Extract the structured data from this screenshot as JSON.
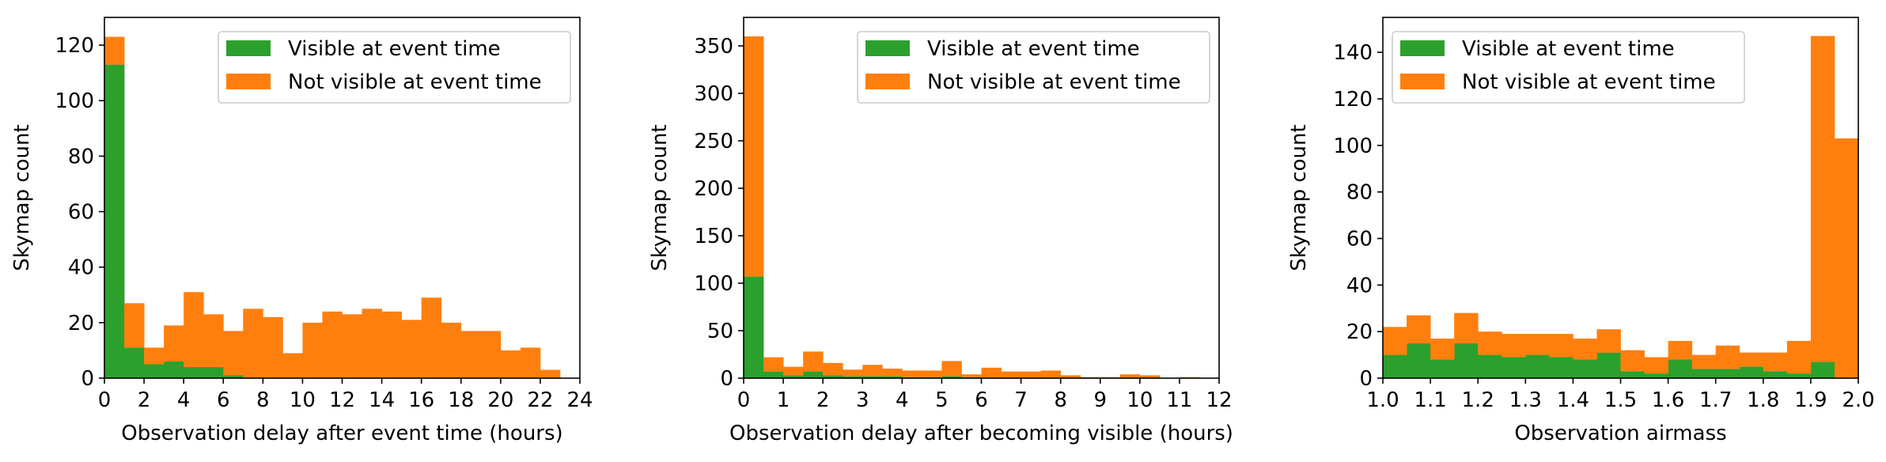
{
  "colors": {
    "visible": "#2ca02c",
    "not_visible": "#ff7f0e"
  },
  "chart_data": [
    {
      "type": "bar",
      "stacked": true,
      "bin_edges": [
        0,
        1,
        2,
        3,
        4,
        5,
        6,
        7,
        8,
        9,
        10,
        11,
        12,
        13,
        14,
        15,
        16,
        17,
        18,
        19,
        20,
        21,
        22,
        23,
        24
      ],
      "xlim": [
        0,
        24
      ],
      "ylim": [
        0,
        130
      ],
      "xticks": [
        0,
        2,
        4,
        6,
        8,
        10,
        12,
        14,
        16,
        18,
        20,
        22,
        24
      ],
      "yticks": [
        0,
        20,
        40,
        60,
        80,
        100,
        120
      ],
      "xlabel": "Observation delay after event time (hours)",
      "ylabel": "Skymap count",
      "legend_position": "top-right",
      "series": [
        {
          "name": "Visible at event time",
          "color": "#2ca02c",
          "values": [
            113,
            11,
            5,
            6,
            4,
            4,
            1,
            0,
            0,
            0,
            0,
            0,
            0,
            0,
            0,
            0,
            0,
            0,
            0,
            0,
            0,
            0,
            0,
            0
          ]
        },
        {
          "name": "Not visible at event time",
          "color": "#ff7f0e",
          "values": [
            10,
            16,
            6,
            13,
            27,
            19,
            16,
            25,
            22,
            9,
            20,
            24,
            23,
            25,
            24,
            21,
            29,
            20,
            17,
            17,
            10,
            11,
            3,
            0
          ]
        }
      ]
    },
    {
      "type": "bar",
      "stacked": true,
      "bin_edges": [
        0,
        0.5,
        1,
        1.5,
        2,
        2.5,
        3,
        3.5,
        4,
        4.5,
        5,
        5.5,
        6,
        6.5,
        7,
        7.5,
        8,
        8.5,
        9,
        9.5,
        10,
        10.5,
        11,
        11.5,
        12
      ],
      "xlim": [
        0,
        12
      ],
      "ylim": [
        0,
        380
      ],
      "xticks": [
        0,
        1,
        2,
        3,
        4,
        5,
        6,
        7,
        8,
        9,
        10,
        11,
        12
      ],
      "yticks": [
        0,
        50,
        100,
        150,
        200,
        250,
        300,
        350
      ],
      "xlabel": "Observation delay after becoming visible (hours)",
      "ylabel": "Skymap count",
      "legend_position": "top-right",
      "series": [
        {
          "name": "Visible at event time",
          "color": "#2ca02c",
          "values": [
            107,
            7,
            3,
            7,
            3,
            2,
            2,
            2,
            1,
            1,
            2,
            1,
            0,
            0,
            0,
            0,
            0,
            0,
            0,
            0,
            0,
            0,
            0,
            0
          ]
        },
        {
          "name": "Not visible at event time",
          "color": "#ff7f0e",
          "values": [
            253,
            15,
            9,
            21,
            13,
            7,
            12,
            8,
            7,
            7,
            16,
            3,
            11,
            7,
            7,
            8,
            3,
            1,
            1,
            4,
            3,
            0,
            1,
            0
          ]
        }
      ]
    },
    {
      "type": "bar",
      "stacked": true,
      "bin_edges": [
        1.0,
        1.05,
        1.1,
        1.15,
        1.2,
        1.25,
        1.3,
        1.35,
        1.4,
        1.45,
        1.5,
        1.55,
        1.6,
        1.65,
        1.7,
        1.75,
        1.8,
        1.85,
        1.9,
        1.95,
        2.0
      ],
      "xlim": [
        1.0,
        2.0
      ],
      "ylim": [
        0,
        155
      ],
      "xticks": [
        1.0,
        1.1,
        1.2,
        1.3,
        1.4,
        1.5,
        1.6,
        1.7,
        1.8,
        1.9,
        2.0
      ],
      "xtick_labels": [
        "1.0",
        "1.1",
        "1.2",
        "1.3",
        "1.4",
        "1.5",
        "1.6",
        "1.7",
        "1.8",
        "1.9",
        "2.0"
      ],
      "yticks": [
        0,
        20,
        40,
        60,
        80,
        100,
        120,
        140
      ],
      "xlabel": "Observation airmass",
      "ylabel": "Skymap count",
      "legend_position": "top-left",
      "series": [
        {
          "name": "Visible at event time",
          "color": "#2ca02c",
          "values": [
            10,
            15,
            8,
            15,
            10,
            9,
            10,
            9,
            8,
            11,
            3,
            2,
            8,
            4,
            4,
            5,
            3,
            2,
            7,
            0
          ]
        },
        {
          "name": "Not visible at event time",
          "color": "#ff7f0e",
          "values": [
            12,
            12,
            9,
            13,
            10,
            10,
            9,
            10,
            9,
            10,
            9,
            7,
            8,
            6,
            10,
            6,
            8,
            14,
            140,
            103
          ]
        }
      ]
    }
  ]
}
